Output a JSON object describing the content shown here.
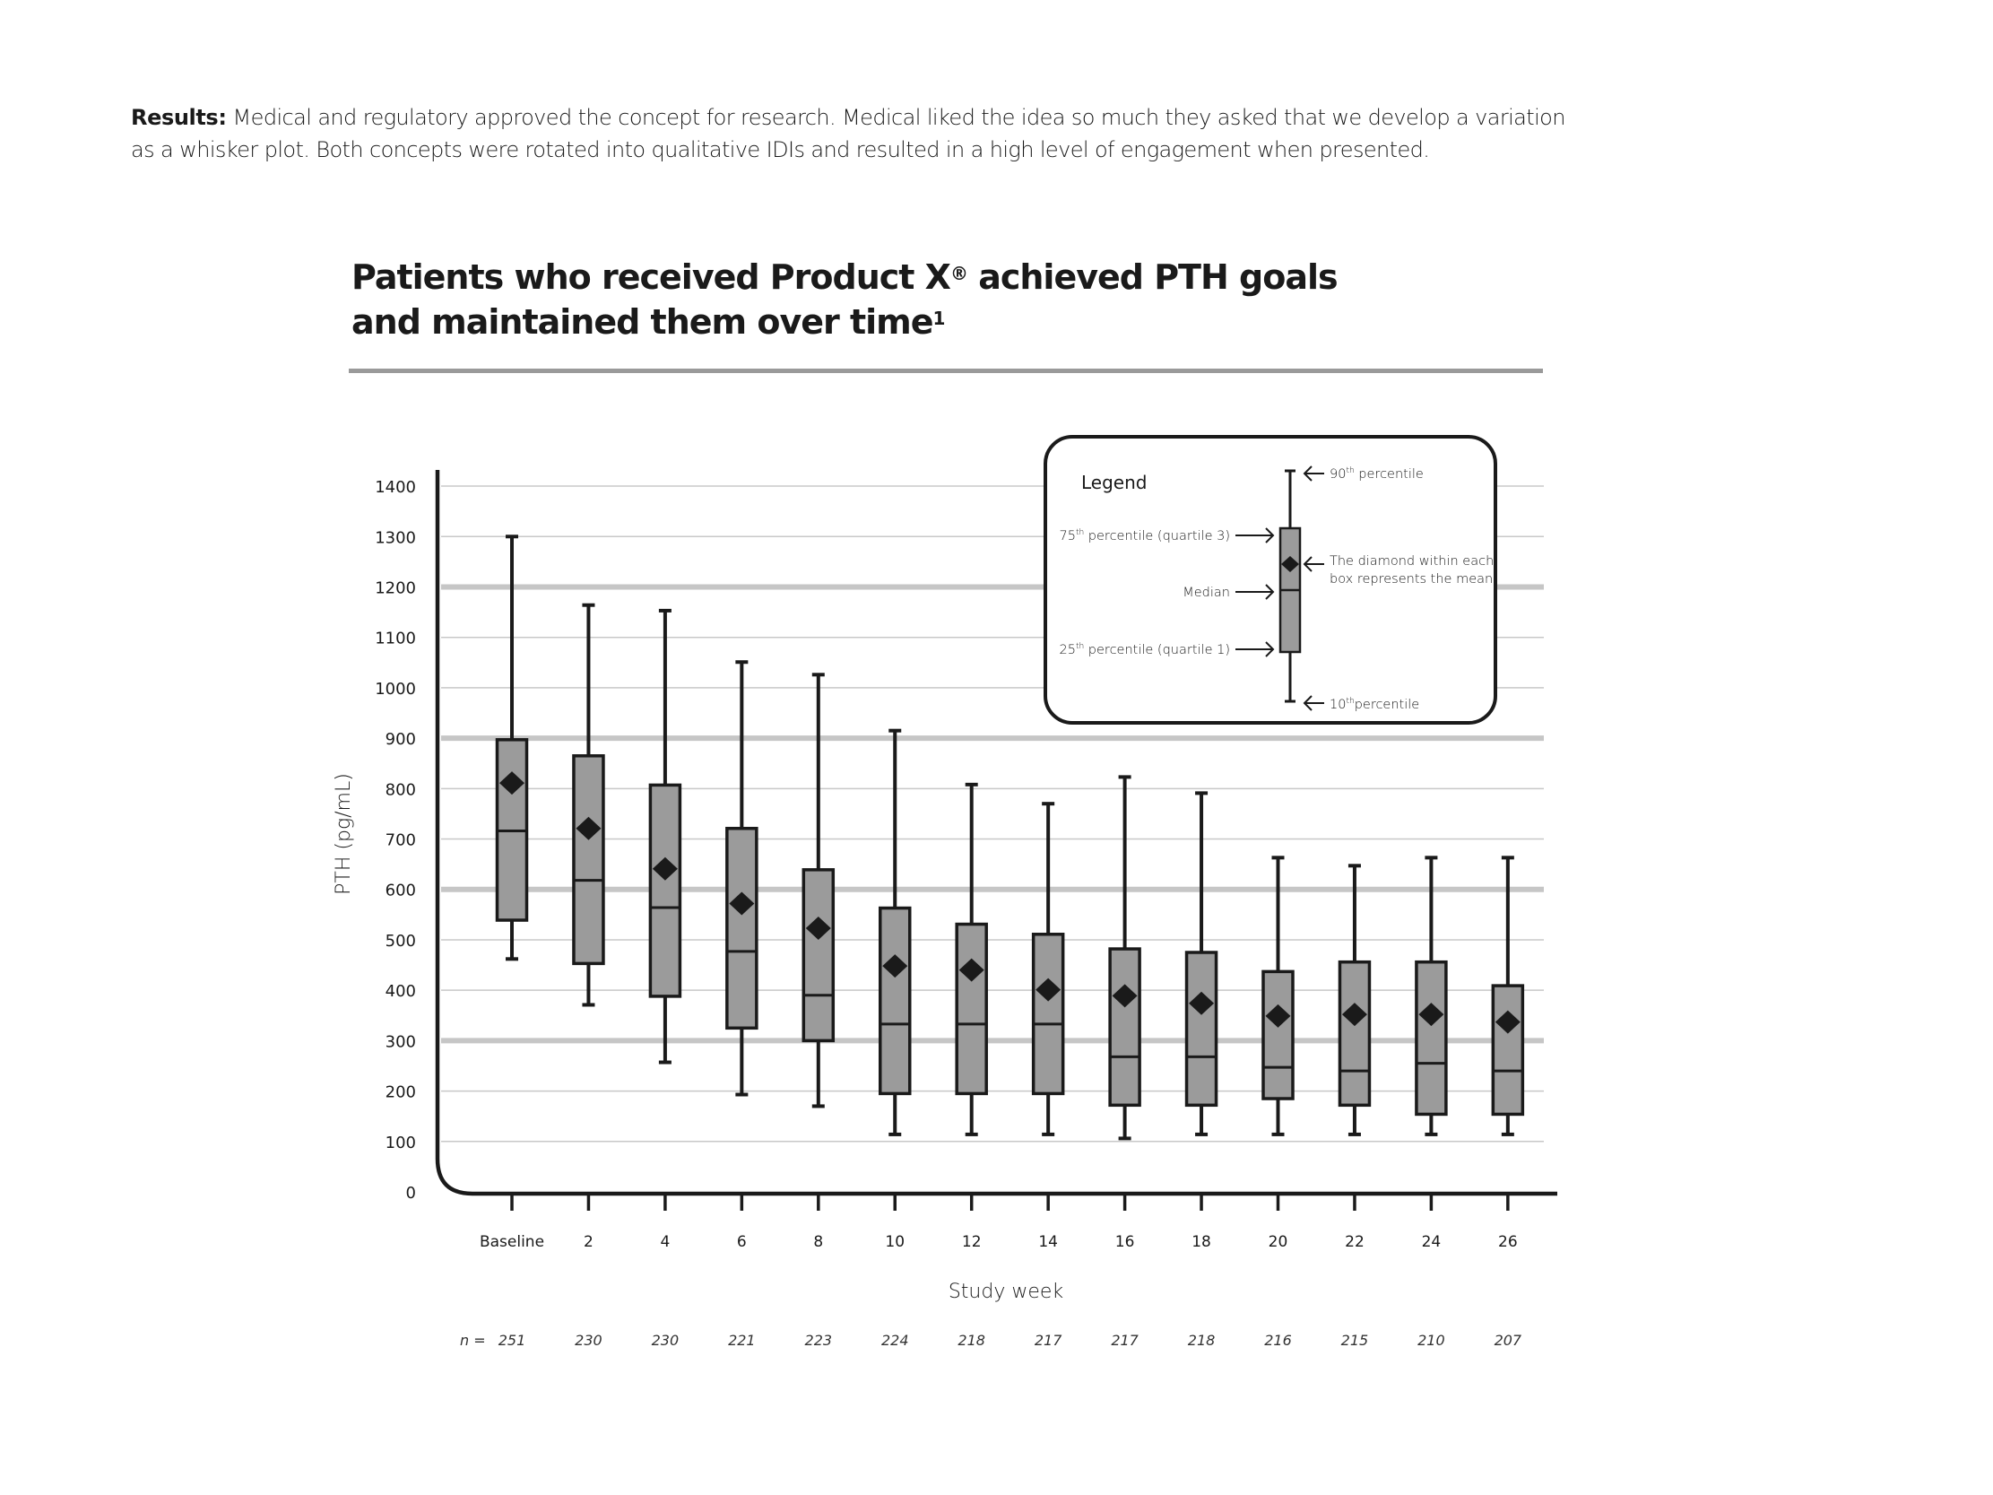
{
  "intro": {
    "lead": "Results:",
    "line1": " Medical and regulatory approved the concept for research. Medical liked the idea so much they asked that we develop a variation",
    "line2": "as a whisker plot.  Both concepts were rotated into qualitative IDIs and resulted in a high level of engagement when presented."
  },
  "title": {
    "line1_a": "Patients who received Product X",
    "line1_sup": "®",
    "line1_b": " achieved PTH goals",
    "line2": "and maintained them over time",
    "line2_sup": "1"
  },
  "colors": {
    "box_fill": "#9b9b9b",
    "ink": "#1a1a1a",
    "grid_thin": "#c8c8c8",
    "grid_thick": "#c6c6c6",
    "divider": "#9a9a9a"
  },
  "chart_data": {
    "type": "box",
    "title": "Patients who received Product X® achieved PTH goals and maintained them over time",
    "xlabel": "Study week",
    "ylabel": "PTH (pg/mL)",
    "ylim": [
      0,
      1400
    ],
    "yticks": [
      0,
      100,
      200,
      300,
      400,
      500,
      600,
      700,
      800,
      900,
      1000,
      1100,
      1200,
      1300,
      1400
    ],
    "emphasized_gridlines": [
      300,
      600,
      900,
      1200
    ],
    "grid": true,
    "n_prefix": "n =",
    "categories": [
      "Baseline",
      "2",
      "4",
      "6",
      "8",
      "10",
      "12",
      "14",
      "16",
      "18",
      "20",
      "22",
      "24",
      "26"
    ],
    "n": [
      251,
      230,
      230,
      221,
      223,
      224,
      218,
      217,
      217,
      218,
      216,
      215,
      210,
      207
    ],
    "series": [
      {
        "name": "10th percentile",
        "values": [
          462,
          371,
          257,
          193,
          170,
          114,
          114,
          114,
          106,
          114,
          114,
          114,
          114,
          114
        ]
      },
      {
        "name": "25th percentile (quartile 1)",
        "values": [
          539,
          453,
          388,
          325,
          300,
          195,
          195,
          195,
          172,
          172,
          185,
          172,
          154,
          154
        ]
      },
      {
        "name": "Median",
        "values": [
          716,
          618,
          564,
          477,
          390,
          333,
          333,
          333,
          268,
          268,
          247,
          240,
          255,
          240
        ]
      },
      {
        "name": "Mean",
        "values": [
          811,
          721,
          641,
          572,
          523,
          448,
          440,
          401,
          389,
          374,
          349,
          352,
          352,
          337
        ]
      },
      {
        "name": "75th percentile (quartile 3)",
        "values": [
          897,
          865,
          807,
          721,
          639,
          563,
          531,
          511,
          482,
          475,
          437,
          456,
          456,
          409
        ]
      },
      {
        "name": "90th percentile",
        "values": [
          1300,
          1164,
          1153,
          1051,
          1026,
          915,
          808,
          770,
          823,
          791,
          663,
          647,
          663,
          663
        ]
      }
    ],
    "legend": {
      "title": "Legend",
      "p90": "90",
      "p90_suffix": " percentile",
      "p75": "75",
      "p75_suffix": " percentile (quartile 3)",
      "median": "Median",
      "p25": "25",
      "p25_suffix": " percentile (quartile 1)",
      "p10": "10",
      "p10_suffix": "percentile",
      "th": "th",
      "mean_line1": "The diamond within each",
      "mean_line2": "box represents the mean",
      "position": "top-right, inside plot"
    }
  }
}
